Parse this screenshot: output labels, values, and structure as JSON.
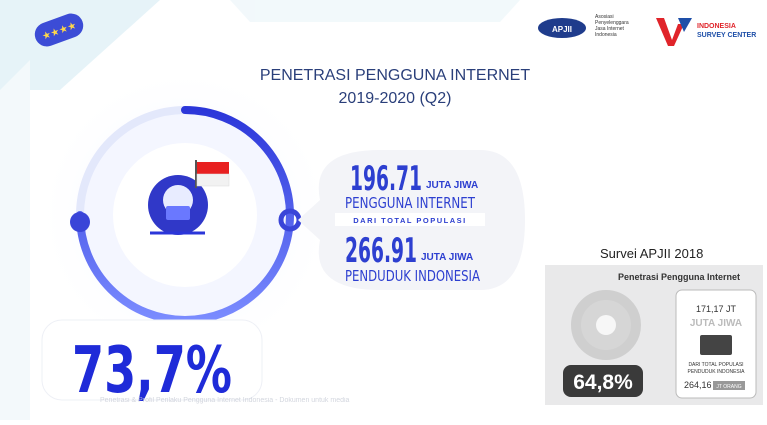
{
  "header": {
    "title": "PENETRASI PENGGUNA INTERNET",
    "subtitle": "2019-2020 (Q2)",
    "logo_left": "APJII",
    "logo_left_caption": "Asosiasi Penyelenggara Jasa Internet Indonesia",
    "logo_right_top": "INDONESIA",
    "logo_right_bottom": "SURVEY CENTER"
  },
  "stats": {
    "users": "196.71",
    "users_unit": "JUTA JIWA",
    "users_label": "PENGGUNA INTERNET",
    "divider": "DARI TOTAL POPULASI",
    "population": "266.91",
    "population_unit": "JUTA JIWA",
    "population_label": "PENDUDUK INDONESIA",
    "penetration": "73,7%"
  },
  "survey_2018": {
    "heading": "Survei APJII 2018",
    "card_title": "Penetrasi Pengguna Internet",
    "users": "171,17 JT",
    "users_unit": "JUTA JIWA",
    "divider_1": "DARI TOTAL POPULASI",
    "divider_2": "PENDUDUK INDONESIA",
    "population": "264,16",
    "population_unit": "JT ORANG",
    "penetration": "64,8%"
  },
  "footer": "Penetrasi & Profil Perilaku Pengguna Internet Indonesia - Dokumen untuk media"
}
